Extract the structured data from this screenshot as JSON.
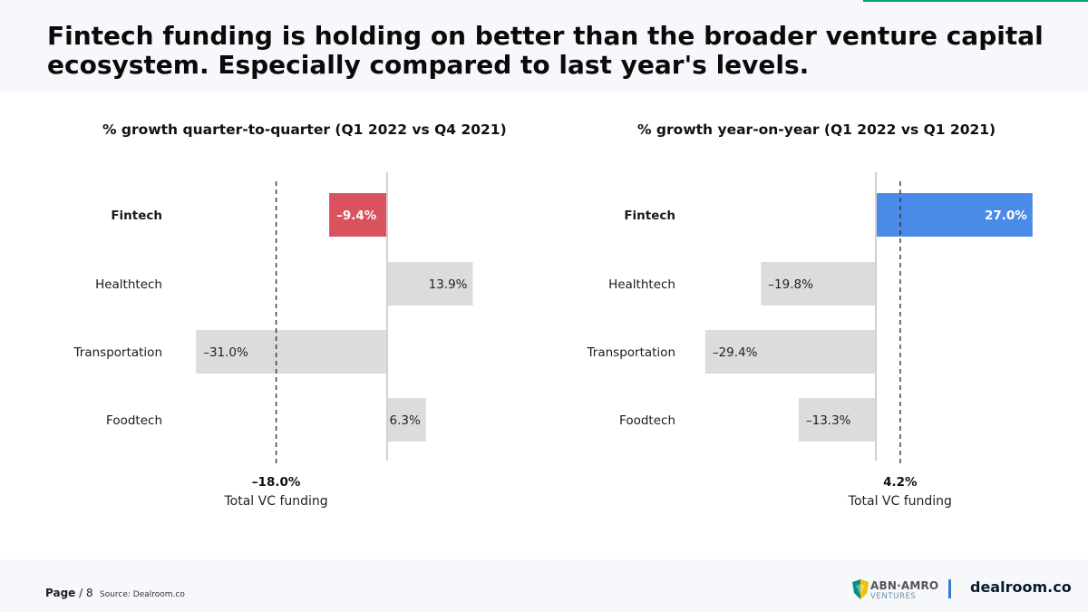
{
  "title": "Fintech funding is holding on better than the broader venture capital ecosystem. Especially compared to last year's levels.",
  "chart_data": [
    {
      "type": "bar",
      "orientation": "horizontal",
      "title": "% growth quarter-to-quarter (Q1 2022 vs Q4 2021)",
      "categories": [
        "Fintech",
        "Healthtech",
        "Transportation",
        "Foodtech"
      ],
      "values": [
        -9.4,
        13.9,
        -31.0,
        6.3
      ],
      "value_labels": [
        "–9.4%",
        "13.9%",
        "–31.0%",
        "6.3%"
      ],
      "bar_colors": [
        "#d9525e",
        "#dcdcdc",
        "#dcdcdc",
        "#dcdcdc"
      ],
      "reference": {
        "value": -18.0,
        "label": "–18.0%",
        "name": "Total VC funding"
      },
      "xlim": [
        -32,
        14
      ]
    },
    {
      "type": "bar",
      "orientation": "horizontal",
      "title": "% growth year-on-year (Q1 2022 vs Q1 2021)",
      "categories": [
        "Fintech",
        "Healthtech",
        "Transportation",
        "Foodtech"
      ],
      "values": [
        27.0,
        -19.8,
        -29.4,
        -13.3
      ],
      "value_labels": [
        "27.0%",
        "–19.8%",
        "–29.4%",
        "–13.3%"
      ],
      "bar_colors": [
        "#4a8ae8",
        "#dcdcdc",
        "#dcdcdc",
        "#dcdcdc"
      ],
      "reference": {
        "value": 4.2,
        "label": "4.2%",
        "name": "Total VC funding"
      },
      "xlim": [
        -30,
        23
      ]
    }
  ],
  "footer": {
    "page_label": "Page",
    "page_number": "/ 8",
    "source": "Source: Dealroom.co",
    "partner_logo": "ABN·AMRO",
    "partner_logo_sub": "VENTURES",
    "brand_logo": "dealroom.co"
  },
  "colors": {
    "accent_green": "#00a36c",
    "fintech_negative": "#d9525e",
    "fintech_positive": "#4a8ae8",
    "neutral_bar": "#dcdcdc",
    "divider_blue": "#3a7bd5"
  }
}
